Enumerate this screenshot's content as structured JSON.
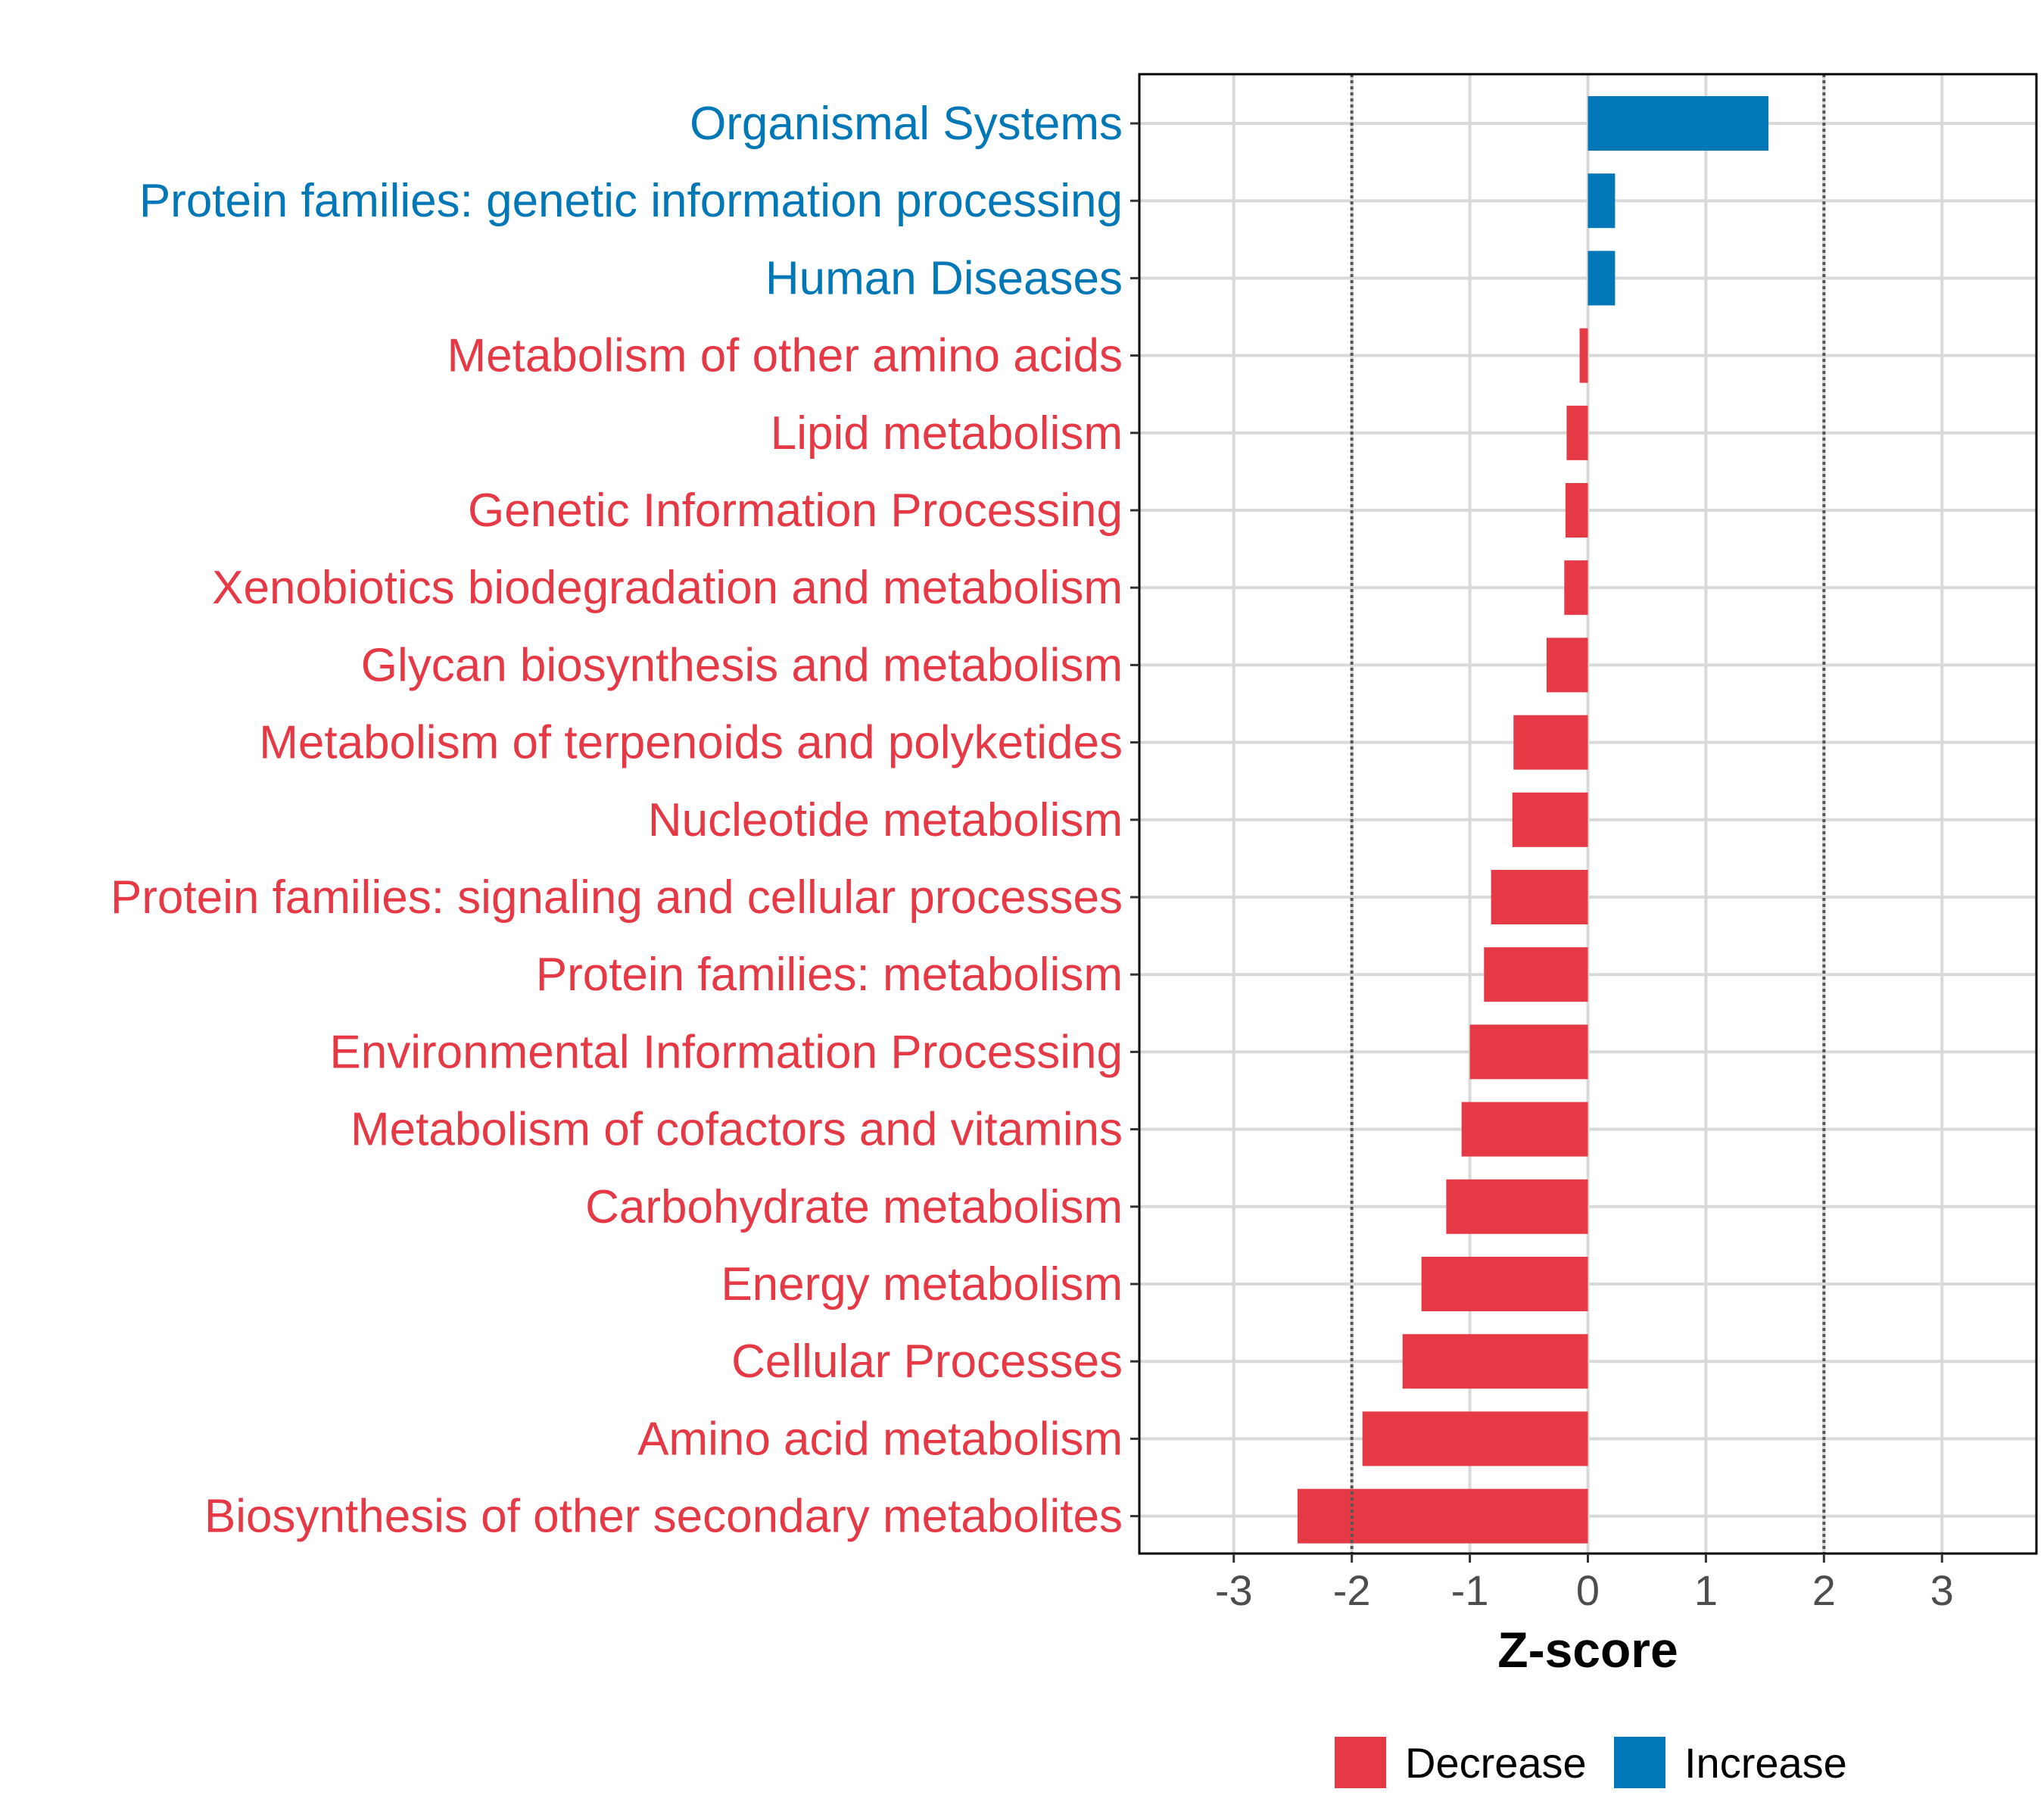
{
  "chart_data": {
    "type": "bar",
    "orientation": "horizontal",
    "categories": [
      "Organismal Systems",
      "Protein families: genetic information processing",
      "Human Diseases",
      "Metabolism of other amino acids",
      "Lipid metabolism",
      "Genetic Information Processing",
      "Xenobiotics biodegradation and metabolism",
      "Glycan biosynthesis and metabolism",
      "Metabolism of terpenoids and polyketides",
      "Nucleotide metabolism",
      "Protein families: signaling and cellular processes",
      "Protein families: metabolism",
      "Environmental Information Processing",
      "Metabolism of cofactors and vitamins",
      "Carbohydrate metabolism",
      "Energy metabolism",
      "Cellular Processes",
      "Amino acid metabolism",
      "Biosynthesis of other secondary metabolites"
    ],
    "values": [
      1.53,
      0.23,
      0.23,
      -0.07,
      -0.18,
      -0.19,
      -0.2,
      -0.35,
      -0.63,
      -0.64,
      -0.82,
      -0.88,
      -1.0,
      -1.07,
      -1.2,
      -1.41,
      -1.57,
      -1.91,
      -2.46
    ],
    "groups": [
      "Increase",
      "Increase",
      "Increase",
      "Decrease",
      "Decrease",
      "Decrease",
      "Decrease",
      "Decrease",
      "Decrease",
      "Decrease",
      "Decrease",
      "Decrease",
      "Decrease",
      "Decrease",
      "Decrease",
      "Decrease",
      "Decrease",
      "Decrease",
      "Decrease"
    ],
    "xlabel": "Z-score",
    "ylabel": "",
    "xlim": [
      -3.8,
      3.8
    ],
    "xticks": [
      -3,
      -2,
      -1,
      0,
      1,
      2,
      3
    ],
    "xtick_labels": [
      "-3",
      "-2",
      "-1",
      "0",
      "1",
      "2",
      "3"
    ],
    "reference_lines": [
      -2,
      2
    ],
    "grid": true,
    "legend": {
      "position": "bottom",
      "entries": [
        {
          "label": "Decrease",
          "color": "#e63946"
        },
        {
          "label": "Increase",
          "color": "#0077b6"
        }
      ]
    }
  },
  "colors": {
    "decrease": "#e63946",
    "increase": "#0077b6",
    "grid": "#d9d9d9",
    "reference_line": "#555555"
  }
}
